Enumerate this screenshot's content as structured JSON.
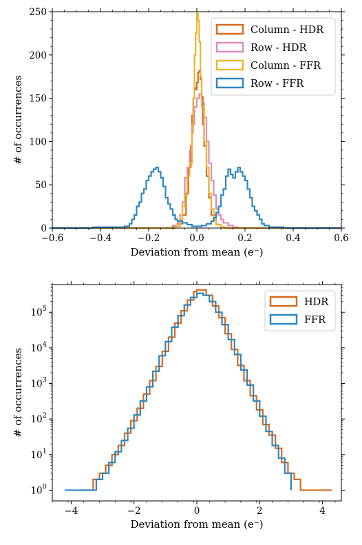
{
  "chart_data": [
    {
      "type": "histogram",
      "xlabel": "Deviation from mean (e⁻)",
      "ylabel": "# of occurrences",
      "xlim": [
        -0.6,
        0.6
      ],
      "ylim": [
        0,
        250
      ],
      "xticks": [
        -0.6,
        -0.4,
        -0.2,
        0.0,
        0.2,
        0.4,
        0.6
      ],
      "xtick_labels": [
        "−0.6",
        "−0.4",
        "−0.2",
        "0.0",
        "0.2",
        "0.4",
        "0.6"
      ],
      "yticks": [
        0,
        50,
        100,
        150,
        200,
        250
      ],
      "ytick_labels": [
        "0",
        "50",
        "100",
        "150",
        "200",
        "250"
      ],
      "legend_position": "top-right",
      "series": [
        {
          "name": "Column - HDR",
          "color": "#d66a1e",
          "points": [
            [
              -0.6,
              0
            ],
            [
              -0.15,
              0
            ],
            [
              -0.1,
              2
            ],
            [
              -0.08,
              5
            ],
            [
              -0.06,
              15
            ],
            [
              -0.045,
              40
            ],
            [
              -0.035,
              70
            ],
            [
              -0.025,
              95
            ],
            [
              -0.02,
              130
            ],
            [
              -0.015,
              150
            ],
            [
              -0.01,
              162
            ],
            [
              -0.005,
              160
            ],
            [
              0.0,
              168
            ],
            [
              0.005,
              180
            ],
            [
              0.01,
              182
            ],
            [
              0.015,
              172
            ],
            [
              0.02,
              152
            ],
            [
              0.025,
              120
            ],
            [
              0.03,
              95
            ],
            [
              0.04,
              60
            ],
            [
              0.05,
              35
            ],
            [
              0.06,
              15
            ],
            [
              0.08,
              4
            ],
            [
              0.1,
              1
            ],
            [
              0.12,
              0
            ],
            [
              0.6,
              0
            ]
          ]
        },
        {
          "name": "Row - HDR",
          "color": "#d98dbf",
          "points": [
            [
              -0.6,
              0
            ],
            [
              -0.13,
              0
            ],
            [
              -0.1,
              3
            ],
            [
              -0.08,
              6
            ],
            [
              -0.07,
              15
            ],
            [
              -0.06,
              30
            ],
            [
              -0.05,
              58
            ],
            [
              -0.04,
              70
            ],
            [
              -0.03,
              90
            ],
            [
              -0.02,
              120
            ],
            [
              -0.01,
              140
            ],
            [
              0.0,
              150
            ],
            [
              0.01,
              155
            ],
            [
              0.02,
              145
            ],
            [
              0.03,
              128
            ],
            [
              0.04,
              100
            ],
            [
              0.05,
              75
            ],
            [
              0.06,
              55
            ],
            [
              0.07,
              38
            ],
            [
              0.08,
              22
            ],
            [
              0.09,
              15
            ],
            [
              0.1,
              10
            ],
            [
              0.11,
              6
            ],
            [
              0.13,
              3
            ],
            [
              0.15,
              1
            ],
            [
              0.17,
              0
            ],
            [
              0.6,
              0
            ]
          ]
        },
        {
          "name": "Column - FFR",
          "color": "#ecb533",
          "points": [
            [
              -0.6,
              0
            ],
            [
              -0.12,
              0
            ],
            [
              -0.09,
              2
            ],
            [
              -0.07,
              10
            ],
            [
              -0.06,
              25
            ],
            [
              -0.05,
              38
            ],
            [
              -0.04,
              60
            ],
            [
              -0.03,
              75
            ],
            [
              -0.02,
              110
            ],
            [
              -0.015,
              150
            ],
            [
              -0.01,
              200
            ],
            [
              -0.005,
              225
            ],
            [
              0.0,
              248
            ],
            [
              0.005,
              240
            ],
            [
              0.01,
              215
            ],
            [
              0.015,
              175
            ],
            [
              0.02,
              140
            ],
            [
              0.03,
              100
            ],
            [
              0.04,
              70
            ],
            [
              0.05,
              40
            ],
            [
              0.06,
              22
            ],
            [
              0.07,
              10
            ],
            [
              0.08,
              4
            ],
            [
              0.1,
              1
            ],
            [
              0.12,
              0
            ],
            [
              0.6,
              0
            ]
          ]
        },
        {
          "name": "Row - FFR",
          "color": "#2b87bf",
          "points": [
            [
              -0.6,
              0
            ],
            [
              -0.5,
              0
            ],
            [
              -0.43,
              1
            ],
            [
              -0.35,
              1
            ],
            [
              -0.3,
              2
            ],
            [
              -0.28,
              5
            ],
            [
              -0.27,
              10
            ],
            [
              -0.26,
              15
            ],
            [
              -0.25,
              25
            ],
            [
              -0.24,
              30
            ],
            [
              -0.23,
              40
            ],
            [
              -0.22,
              45
            ],
            [
              -0.21,
              55
            ],
            [
              -0.2,
              60
            ],
            [
              -0.19,
              65
            ],
            [
              -0.18,
              68
            ],
            [
              -0.17,
              70
            ],
            [
              -0.16,
              65
            ],
            [
              -0.15,
              58
            ],
            [
              -0.14,
              48
            ],
            [
              -0.13,
              35
            ],
            [
              -0.12,
              28
            ],
            [
              -0.11,
              22
            ],
            [
              -0.1,
              15
            ],
            [
              -0.09,
              10
            ],
            [
              -0.08,
              8
            ],
            [
              -0.06,
              6
            ],
            [
              -0.04,
              4
            ],
            [
              -0.02,
              2
            ],
            [
              0.0,
              2
            ],
            [
              0.02,
              3
            ],
            [
              0.04,
              5
            ],
            [
              0.06,
              8
            ],
            [
              0.07,
              12
            ],
            [
              0.08,
              18
            ],
            [
              0.09,
              25
            ],
            [
              0.1,
              38
            ],
            [
              0.11,
              45
            ],
            [
              0.12,
              60
            ],
            [
              0.13,
              68
            ],
            [
              0.14,
              62
            ],
            [
              0.15,
              58
            ],
            [
              0.16,
              65
            ],
            [
              0.17,
              70
            ],
            [
              0.18,
              65
            ],
            [
              0.19,
              60
            ],
            [
              0.2,
              55
            ],
            [
              0.21,
              45
            ],
            [
              0.22,
              35
            ],
            [
              0.23,
              25
            ],
            [
              0.24,
              20
            ],
            [
              0.25,
              15
            ],
            [
              0.26,
              10
            ],
            [
              0.27,
              5
            ],
            [
              0.28,
              3
            ],
            [
              0.3,
              1
            ],
            [
              0.34,
              1
            ],
            [
              0.36,
              0
            ],
            [
              0.6,
              0
            ]
          ]
        }
      ]
    },
    {
      "type": "histogram",
      "xlabel": "Deviation from mean (e⁻)",
      "ylabel": "# of occurrences",
      "xlim": [
        -4.6,
        4.6
      ],
      "ylim": [
        0.5,
        600000
      ],
      "yscale": "log",
      "xticks": [
        -4,
        -2,
        0,
        2,
        4
      ],
      "xtick_labels": [
        "−4",
        "−2",
        "0",
        "2",
        "4"
      ],
      "yticks": [
        1,
        10,
        100,
        1000,
        10000,
        100000
      ],
      "ytick_exponents": [
        "0",
        "1",
        "2",
        "3",
        "4",
        "5"
      ],
      "legend_position": "top-right",
      "series": [
        {
          "name": "HDR",
          "color": "#d66a1e",
          "points": [
            [
              -3.7,
              1
            ],
            [
              -3.5,
              1
            ],
            [
              -3.3,
              2
            ],
            [
              -3.1,
              3
            ],
            [
              -2.9,
              5
            ],
            [
              -2.7,
              10
            ],
            [
              -2.5,
              18
            ],
            [
              -2.3,
              40
            ],
            [
              -2.1,
              90
            ],
            [
              -1.9,
              200
            ],
            [
              -1.7,
              500
            ],
            [
              -1.5,
              1200
            ],
            [
              -1.3,
              3000
            ],
            [
              -1.1,
              8000
            ],
            [
              -0.9,
              20000
            ],
            [
              -0.7,
              50000
            ],
            [
              -0.5,
              110000
            ],
            [
              -0.3,
              220000
            ],
            [
              -0.1,
              380000
            ],
            [
              0.0,
              430000
            ],
            [
              0.1,
              420000
            ],
            [
              0.3,
              300000
            ],
            [
              0.5,
              150000
            ],
            [
              0.7,
              70000
            ],
            [
              0.9,
              25000
            ],
            [
              1.1,
              9000
            ],
            [
              1.3,
              3200
            ],
            [
              1.5,
              1200
            ],
            [
              1.7,
              450
            ],
            [
              1.9,
              180
            ],
            [
              2.1,
              70
            ],
            [
              2.3,
              35
            ],
            [
              2.5,
              15
            ],
            [
              2.7,
              6
            ],
            [
              2.9,
              3
            ],
            [
              3.1,
              2
            ],
            [
              3.3,
              1
            ],
            [
              3.5,
              1
            ],
            [
              3.7,
              1
            ],
            [
              3.9,
              1
            ],
            [
              4.1,
              1
            ],
            [
              4.3,
              1
            ]
          ]
        },
        {
          "name": "FFR",
          "color": "#2b87bf",
          "points": [
            [
              -4.2,
              1
            ],
            [
              -3.4,
              1
            ],
            [
              -3.2,
              2
            ],
            [
              -3.0,
              3
            ],
            [
              -2.8,
              6
            ],
            [
              -2.6,
              12
            ],
            [
              -2.4,
              25
            ],
            [
              -2.2,
              55
            ],
            [
              -2.0,
              130
            ],
            [
              -1.8,
              320
            ],
            [
              -1.6,
              800
            ],
            [
              -1.4,
              2200
            ],
            [
              -1.2,
              6000
            ],
            [
              -1.0,
              15000
            ],
            [
              -0.8,
              38000
            ],
            [
              -0.6,
              80000
            ],
            [
              -0.4,
              160000
            ],
            [
              -0.2,
              260000
            ],
            [
              0.0,
              340000
            ],
            [
              0.2,
              300000
            ],
            [
              0.4,
              200000
            ],
            [
              0.6,
              100000
            ],
            [
              0.8,
              45000
            ],
            [
              1.0,
              17000
            ],
            [
              1.2,
              6500
            ],
            [
              1.4,
              2400
            ],
            [
              1.6,
              900
            ],
            [
              1.8,
              320
            ],
            [
              2.0,
              120
            ],
            [
              2.2,
              45
            ],
            [
              2.4,
              18
            ],
            [
              2.6,
              8
            ],
            [
              2.8,
              3
            ],
            [
              3.0,
              1
            ]
          ]
        }
      ]
    }
  ]
}
